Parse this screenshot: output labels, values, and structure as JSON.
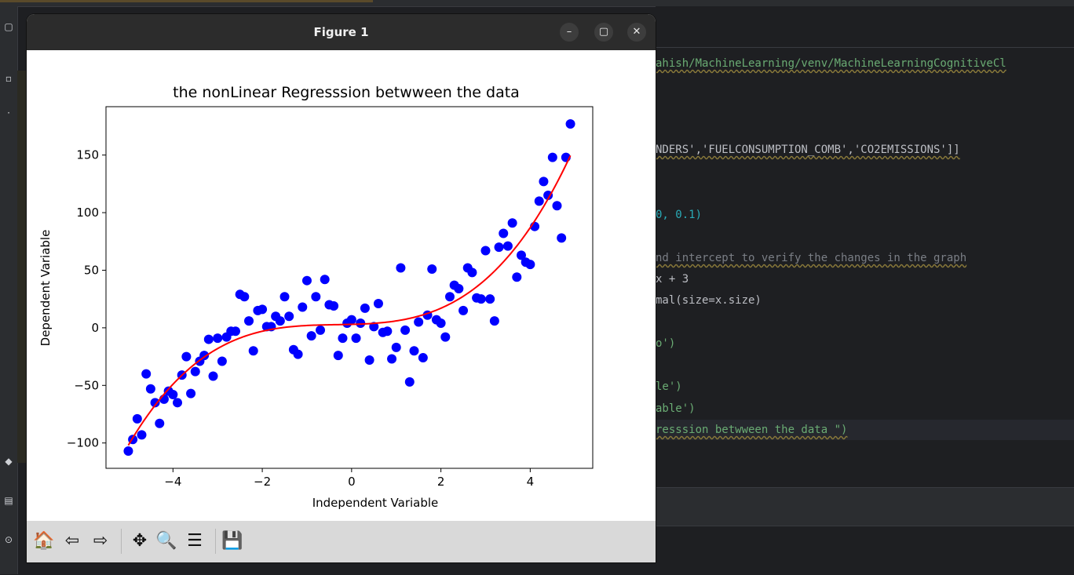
{
  "window": {
    "title": "Figure 1"
  },
  "window_controls": {
    "minimize": "–",
    "maximize": "▢",
    "close": "✕"
  },
  "editor": {
    "lines": [
      {
        "text": "ahish/MachineLearning/venv/MachineLearningCognitiveCl"
      },
      {
        "text": "NDERS','FUELCONSUMPTION_COMB','CO2EMISSIONS']]"
      },
      {
        "text": "0, 0.1)"
      },
      {
        "text": "nd intercept to verify the changes in the graph"
      },
      {
        "text": "x + 3"
      },
      {
        "text": "mal(size=x.size)"
      },
      {
        "text": "o')"
      },
      {
        "text": "le')"
      },
      {
        "text": "able')"
      },
      {
        "text": "resssion betwween the data \")"
      }
    ]
  },
  "toolbar": {
    "home_glyph": "🏠",
    "back_glyph": "⇦",
    "forward_glyph": "⇨",
    "pan_glyph": "✥",
    "zoom_glyph": "🔍",
    "configure_glyph": "☰",
    "save_glyph": "💾"
  },
  "colors": {
    "points": "#0000ff",
    "curve": "#ff0000",
    "titlebar": "#2c2c2c",
    "toolbar": "#d9d9d9"
  },
  "chart_data": {
    "type": "scatter",
    "title": "the nonLinear Regresssion betwween the data",
    "xlabel": "Independent Variable",
    "ylabel": "Dependent Variable",
    "xlim": [
      -5.5,
      5.4
    ],
    "ylim": [
      -122,
      192
    ],
    "xticks": [
      -4,
      -2,
      0,
      2,
      4
    ],
    "xtick_labels": [
      "−4",
      "−2",
      "0",
      "2",
      "4"
    ],
    "yticks": [
      -100,
      -50,
      0,
      50,
      100,
      150
    ],
    "ytick_labels": [
      "−100",
      "−50",
      "0",
      "50",
      "100",
      "150"
    ],
    "grid": false,
    "series": [
      {
        "kind": "points",
        "color": "#0000ff",
        "points": [
          [
            -5.0,
            -107
          ],
          [
            -4.9,
            -97
          ],
          [
            -4.8,
            -79
          ],
          [
            -4.7,
            -93
          ],
          [
            -4.6,
            -40
          ],
          [
            -4.5,
            -53
          ],
          [
            -4.4,
            -65
          ],
          [
            -4.3,
            -83
          ],
          [
            -4.2,
            -62
          ],
          [
            -4.1,
            -55
          ],
          [
            -4.0,
            -58
          ],
          [
            -3.9,
            -65
          ],
          [
            -3.8,
            -41
          ],
          [
            -3.7,
            -25
          ],
          [
            -3.6,
            -57
          ],
          [
            -3.5,
            -38
          ],
          [
            -3.4,
            -29
          ],
          [
            -3.3,
            -24
          ],
          [
            -3.2,
            -10
          ],
          [
            -3.1,
            -42
          ],
          [
            -3.0,
            -9
          ],
          [
            -2.9,
            -29
          ],
          [
            -2.8,
            -8
          ],
          [
            -2.7,
            -3
          ],
          [
            -2.6,
            -3
          ],
          [
            -2.5,
            29
          ],
          [
            -2.4,
            27
          ],
          [
            -2.3,
            6
          ],
          [
            -2.2,
            -20
          ],
          [
            -2.1,
            15
          ],
          [
            -2.0,
            16
          ],
          [
            -1.9,
            1
          ],
          [
            -1.8,
            1
          ],
          [
            -1.7,
            10
          ],
          [
            -1.6,
            6
          ],
          [
            -1.5,
            27
          ],
          [
            -1.4,
            10
          ],
          [
            -1.3,
            -19
          ],
          [
            -1.2,
            -23
          ],
          [
            -1.1,
            18
          ],
          [
            -1.0,
            41
          ],
          [
            -0.9,
            -7
          ],
          [
            -0.8,
            27
          ],
          [
            -0.7,
            -2
          ],
          [
            -0.6,
            42
          ],
          [
            -0.5,
            20
          ],
          [
            -0.4,
            19
          ],
          [
            -0.3,
            -24
          ],
          [
            -0.2,
            -9
          ],
          [
            -0.1,
            4
          ],
          [
            0.0,
            7
          ],
          [
            0.1,
            -9
          ],
          [
            0.2,
            4
          ],
          [
            0.3,
            17
          ],
          [
            0.4,
            -28
          ],
          [
            0.5,
            1
          ],
          [
            0.6,
            21
          ],
          [
            0.7,
            -4
          ],
          [
            0.8,
            -3
          ],
          [
            0.9,
            -27
          ],
          [
            1.0,
            -17
          ],
          [
            1.1,
            52
          ],
          [
            1.2,
            -2
          ],
          [
            1.3,
            -47
          ],
          [
            1.4,
            -20
          ],
          [
            1.5,
            5
          ],
          [
            1.6,
            -26
          ],
          [
            1.7,
            11
          ],
          [
            1.8,
            51
          ],
          [
            1.9,
            7
          ],
          [
            2.0,
            4
          ],
          [
            2.1,
            -8
          ],
          [
            2.2,
            27
          ],
          [
            2.3,
            37
          ],
          [
            2.4,
            34
          ],
          [
            2.5,
            15
          ],
          [
            2.6,
            52
          ],
          [
            2.7,
            48
          ],
          [
            2.8,
            26
          ],
          [
            2.9,
            25
          ],
          [
            3.0,
            67
          ],
          [
            3.1,
            25
          ],
          [
            3.2,
            6
          ],
          [
            3.3,
            70
          ],
          [
            3.4,
            82
          ],
          [
            3.5,
            71
          ],
          [
            3.6,
            91
          ],
          [
            3.7,
            44
          ],
          [
            3.8,
            63
          ],
          [
            3.9,
            57
          ],
          [
            4.0,
            55
          ],
          [
            4.1,
            88
          ],
          [
            4.2,
            110
          ],
          [
            4.3,
            127
          ],
          [
            4.4,
            115
          ],
          [
            4.5,
            148
          ],
          [
            4.6,
            106
          ],
          [
            4.7,
            78
          ],
          [
            4.8,
            148
          ],
          [
            4.9,
            177
          ]
        ]
      },
      {
        "kind": "line",
        "color": "#ff0000",
        "formula": "y = x^3 + x^2 + x + 3",
        "x_range": [
          -5.0,
          4.9
        ]
      }
    ]
  }
}
